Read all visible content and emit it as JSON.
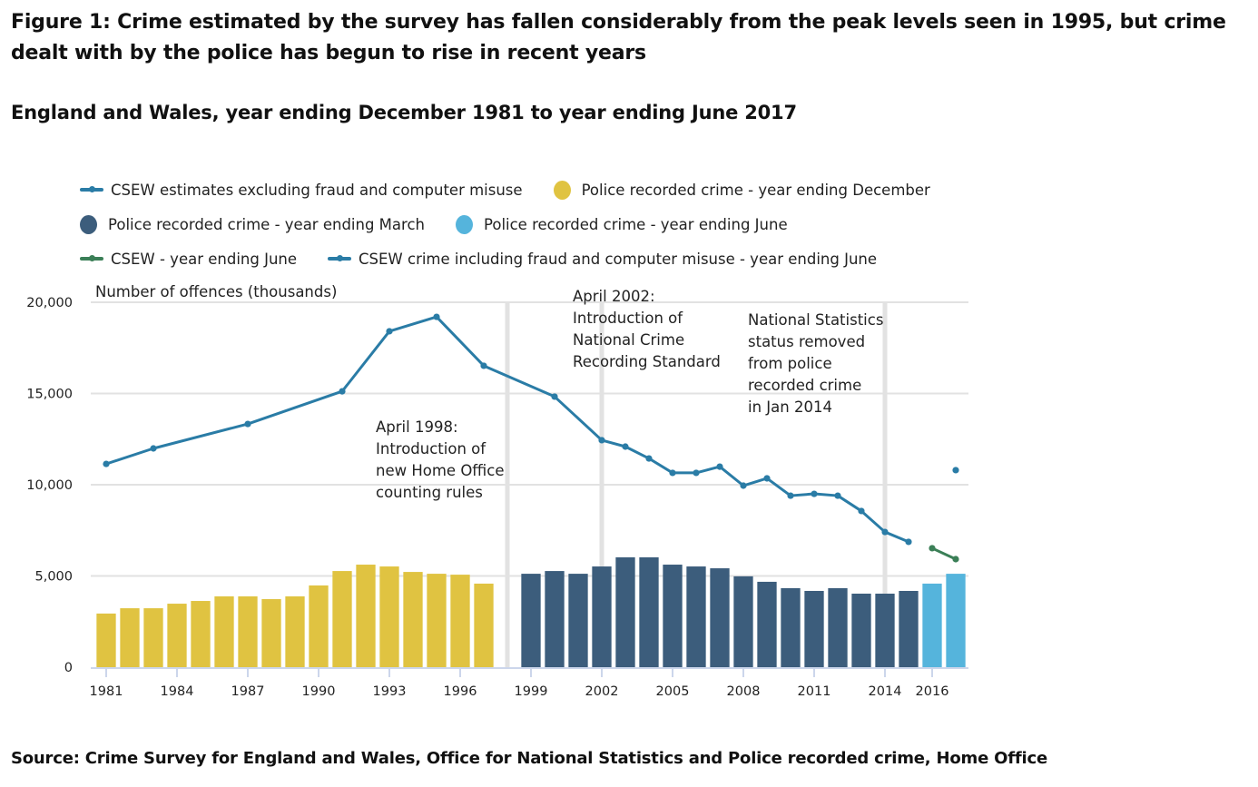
{
  "title": "Figure 1: Crime estimated by the survey has fallen considerably from the peak levels seen in 1995, but crime dealt with by the police has begun to rise in recent years",
  "subtitle": "England and Wales, year ending December 1981 to year ending June 2017",
  "source": "Source: Crime Survey for England and Wales, Office for National Statistics and Police recorded crime, Home Office",
  "legend": [
    {
      "label": "CSEW estimates excluding fraud and computer misuse",
      "type": "line",
      "color": "#2a7ca6"
    },
    {
      "label": "Police recorded crime - year ending December",
      "type": "dot",
      "color": "#e0c341"
    },
    {
      "label": "Police recorded crime - year ending March",
      "type": "dot",
      "color": "#3c5d7c"
    },
    {
      "label": "Police recorded crime - year ending June",
      "type": "dot",
      "color": "#55b4dc"
    },
    {
      "label": "CSEW - year ending June",
      "type": "line",
      "color": "#3b7f57"
    },
    {
      "label": "CSEW crime including fraud and computer misuse - year ending June",
      "type": "line",
      "color": "#2a7ca6"
    }
  ],
  "chart_data": {
    "type": "bar",
    "title": "Figure 1: Crime estimated by the survey has fallen considerably from the peak levels seen in 1995, but crime dealt with by the police has begun to rise in recent years",
    "subtitle": "England and Wales, year ending December 1981 to year ending June 2017",
    "ylabel": "Number of offences (thousands)",
    "xlabel": "",
    "ylim": [
      0,
      20000
    ],
    "yticks": [
      0,
      5000,
      10000,
      15000,
      20000
    ],
    "ytick_labels": [
      "0",
      "5,000",
      "10,000",
      "15,000",
      "20,000"
    ],
    "grid": true,
    "legend_position": "top",
    "categories": [
      "1981",
      "1982",
      "1983",
      "1984",
      "1985",
      "1986",
      "1987",
      "1988",
      "1989",
      "1990",
      "1991",
      "1992",
      "1993",
      "1994",
      "1995",
      "1996",
      "1997",
      "1998",
      "1999",
      "2000",
      "2001",
      "2002",
      "2003",
      "2004",
      "2005",
      "2006",
      "2007",
      "2008",
      "2009",
      "2010",
      "2011",
      "2012",
      "2013",
      "2014",
      "2015",
      "2016",
      "2017"
    ],
    "xtick_labels": [
      {
        "category": "1981",
        "label": "1981"
      },
      {
        "category": "1984",
        "label": "1984"
      },
      {
        "category": "1987",
        "label": "1987"
      },
      {
        "category": "1990",
        "label": "1990"
      },
      {
        "category": "1993",
        "label": "1993"
      },
      {
        "category": "1996",
        "label": "1996"
      },
      {
        "category": "1999",
        "label": "1999"
      },
      {
        "category": "2002",
        "label": "2002"
      },
      {
        "category": "2005",
        "label": "2005"
      },
      {
        "category": "2008",
        "label": "2008"
      },
      {
        "category": "2011",
        "label": "2011"
      },
      {
        "category": "2014",
        "label": "2014"
      },
      {
        "category": "2016",
        "label": "2016"
      }
    ],
    "bar_series": [
      {
        "name": "Police recorded crime - year ending December",
        "color": "#e0c341",
        "points": [
          [
            "1981",
            2940
          ],
          [
            "1982",
            3230
          ],
          [
            "1983",
            3230
          ],
          [
            "1984",
            3480
          ],
          [
            "1985",
            3630
          ],
          [
            "1986",
            3880
          ],
          [
            "1987",
            3880
          ],
          [
            "1988",
            3730
          ],
          [
            "1989",
            3880
          ],
          [
            "1990",
            4480
          ],
          [
            "1991",
            5270
          ],
          [
            "1992",
            5620
          ],
          [
            "1993",
            5520
          ],
          [
            "1994",
            5220
          ],
          [
            "1995",
            5120
          ],
          [
            "1996",
            5070
          ],
          [
            "1997",
            4580
          ]
        ]
      },
      {
        "name": "Police recorded crime - year ending March",
        "color": "#3c5d7c",
        "points": [
          [
            "1999",
            5120
          ],
          [
            "2000",
            5270
          ],
          [
            "2001",
            5120
          ],
          [
            "2002",
            5520
          ],
          [
            "2003",
            6020
          ],
          [
            "2004",
            6020
          ],
          [
            "2005",
            5620
          ],
          [
            "2006",
            5520
          ],
          [
            "2007",
            5420
          ],
          [
            "2008",
            4980
          ],
          [
            "2009",
            4680
          ],
          [
            "2010",
            4330
          ],
          [
            "2011",
            4180
          ],
          [
            "2012",
            4330
          ],
          [
            "2013",
            4030
          ],
          [
            "2014",
            4030
          ],
          [
            "2015",
            4180
          ]
        ]
      },
      {
        "name": "Police recorded crime - year ending June",
        "color": "#55b4dc",
        "points": [
          [
            "2016",
            4580
          ],
          [
            "2017",
            5120
          ]
        ]
      }
    ],
    "line_series": [
      {
        "name": "CSEW estimates excluding fraud and computer misuse",
        "color": "#2a7ca6",
        "points": [
          [
            "1981",
            11140
          ],
          [
            "1983",
            11990
          ],
          [
            "1987",
            13330
          ],
          [
            "1991",
            15120
          ],
          [
            "1993",
            18410
          ],
          [
            "1995",
            19200
          ],
          [
            "1997",
            16520
          ],
          [
            "2000",
            14830
          ],
          [
            "2002",
            12440
          ],
          [
            "2003",
            12090
          ],
          [
            "2004",
            11440
          ],
          [
            "2005",
            10650
          ],
          [
            "2006",
            10650
          ],
          [
            "2007",
            10990
          ],
          [
            "2008",
            9950
          ],
          [
            "2009",
            10350
          ],
          [
            "2010",
            9400
          ],
          [
            "2011",
            9500
          ],
          [
            "2012",
            9400
          ],
          [
            "2013",
            8560
          ],
          [
            "2014",
            7410
          ],
          [
            "2015",
            6870
          ]
        ]
      },
      {
        "name": "CSEW - year ending June",
        "color": "#3b7f57",
        "points": [
          [
            "2016",
            6520
          ],
          [
            "2017",
            5920
          ]
        ]
      },
      {
        "name": "CSEW crime including fraud and computer misuse - year ending June",
        "color": "#2a7ca6",
        "points": [
          [
            "2017",
            10800
          ]
        ]
      }
    ],
    "reference_lines": [
      {
        "category": "1998",
        "label_lines": [
          "April 1998:",
          "Introduction of",
          "new Home Office",
          "counting rules"
        ]
      },
      {
        "category": "2002",
        "label_lines": [
          "April 2002:",
          "Introduction of",
          "National Crime",
          "Recording Standard"
        ]
      },
      {
        "category": "2014",
        "label_lines": [
          "National Statistics",
          "status removed",
          "from police",
          "recorded crime",
          "in Jan 2014"
        ]
      }
    ]
  }
}
